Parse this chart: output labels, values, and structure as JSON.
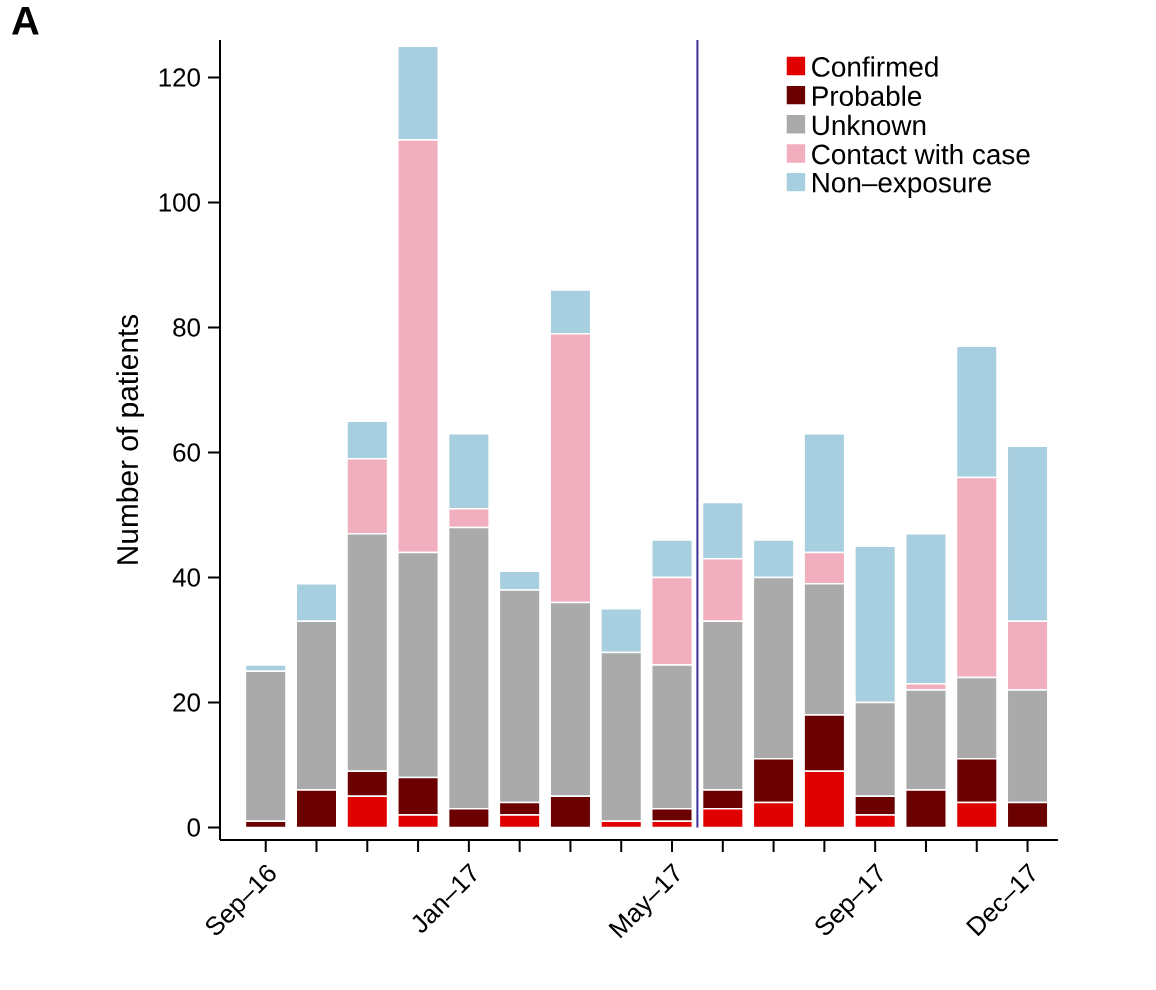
{
  "chart_data": {
    "type": "bar",
    "stacked": true,
    "ylabel": "Number of patients",
    "annotations": [
      "**A**"
    ],
    "categories": [
      "Sep–16",
      null,
      null,
      null,
      "Jan–17",
      null,
      null,
      null,
      "May–17",
      null,
      null,
      null,
      "Sep–17",
      null,
      null,
      "Dec–17"
    ],
    "series": [
      {
        "name": "Confirmed",
        "color": "#e00000",
        "values": [
          0,
          0,
          5,
          2,
          0,
          2,
          0,
          1,
          1,
          3,
          4,
          9,
          2,
          0,
          4,
          0
        ]
      },
      {
        "name": "Probable",
        "color": "#6b0000",
        "values": [
          1,
          6,
          4,
          6,
          3,
          2,
          5,
          0,
          2,
          3,
          7,
          9,
          3,
          6,
          7,
          4
        ]
      },
      {
        "name": "Unknown",
        "color": "#aaaaaa",
        "values": [
          24,
          27,
          38,
          36,
          45,
          34,
          31,
          27,
          23,
          27,
          29,
          21,
          15,
          16,
          13,
          18
        ]
      },
      {
        "name": "Contact with case",
        "color": "#f0aebe",
        "values": [
          0,
          0,
          12,
          66,
          3,
          0,
          43,
          0,
          14,
          10,
          0,
          5,
          0,
          1,
          32,
          11
        ]
      },
      {
        "name": "Non–exposure",
        "color": "#a8cfe0",
        "values": [
          1,
          6,
          6,
          15,
          12,
          3,
          7,
          7,
          6,
          9,
          6,
          19,
          25,
          24,
          21,
          28
        ]
      }
    ],
    "ylim": [
      -2,
      126
    ],
    "yticks": [
      0,
      20,
      40,
      60,
      80,
      100,
      120
    ],
    "legend": "top right",
    "grid": false
  }
}
